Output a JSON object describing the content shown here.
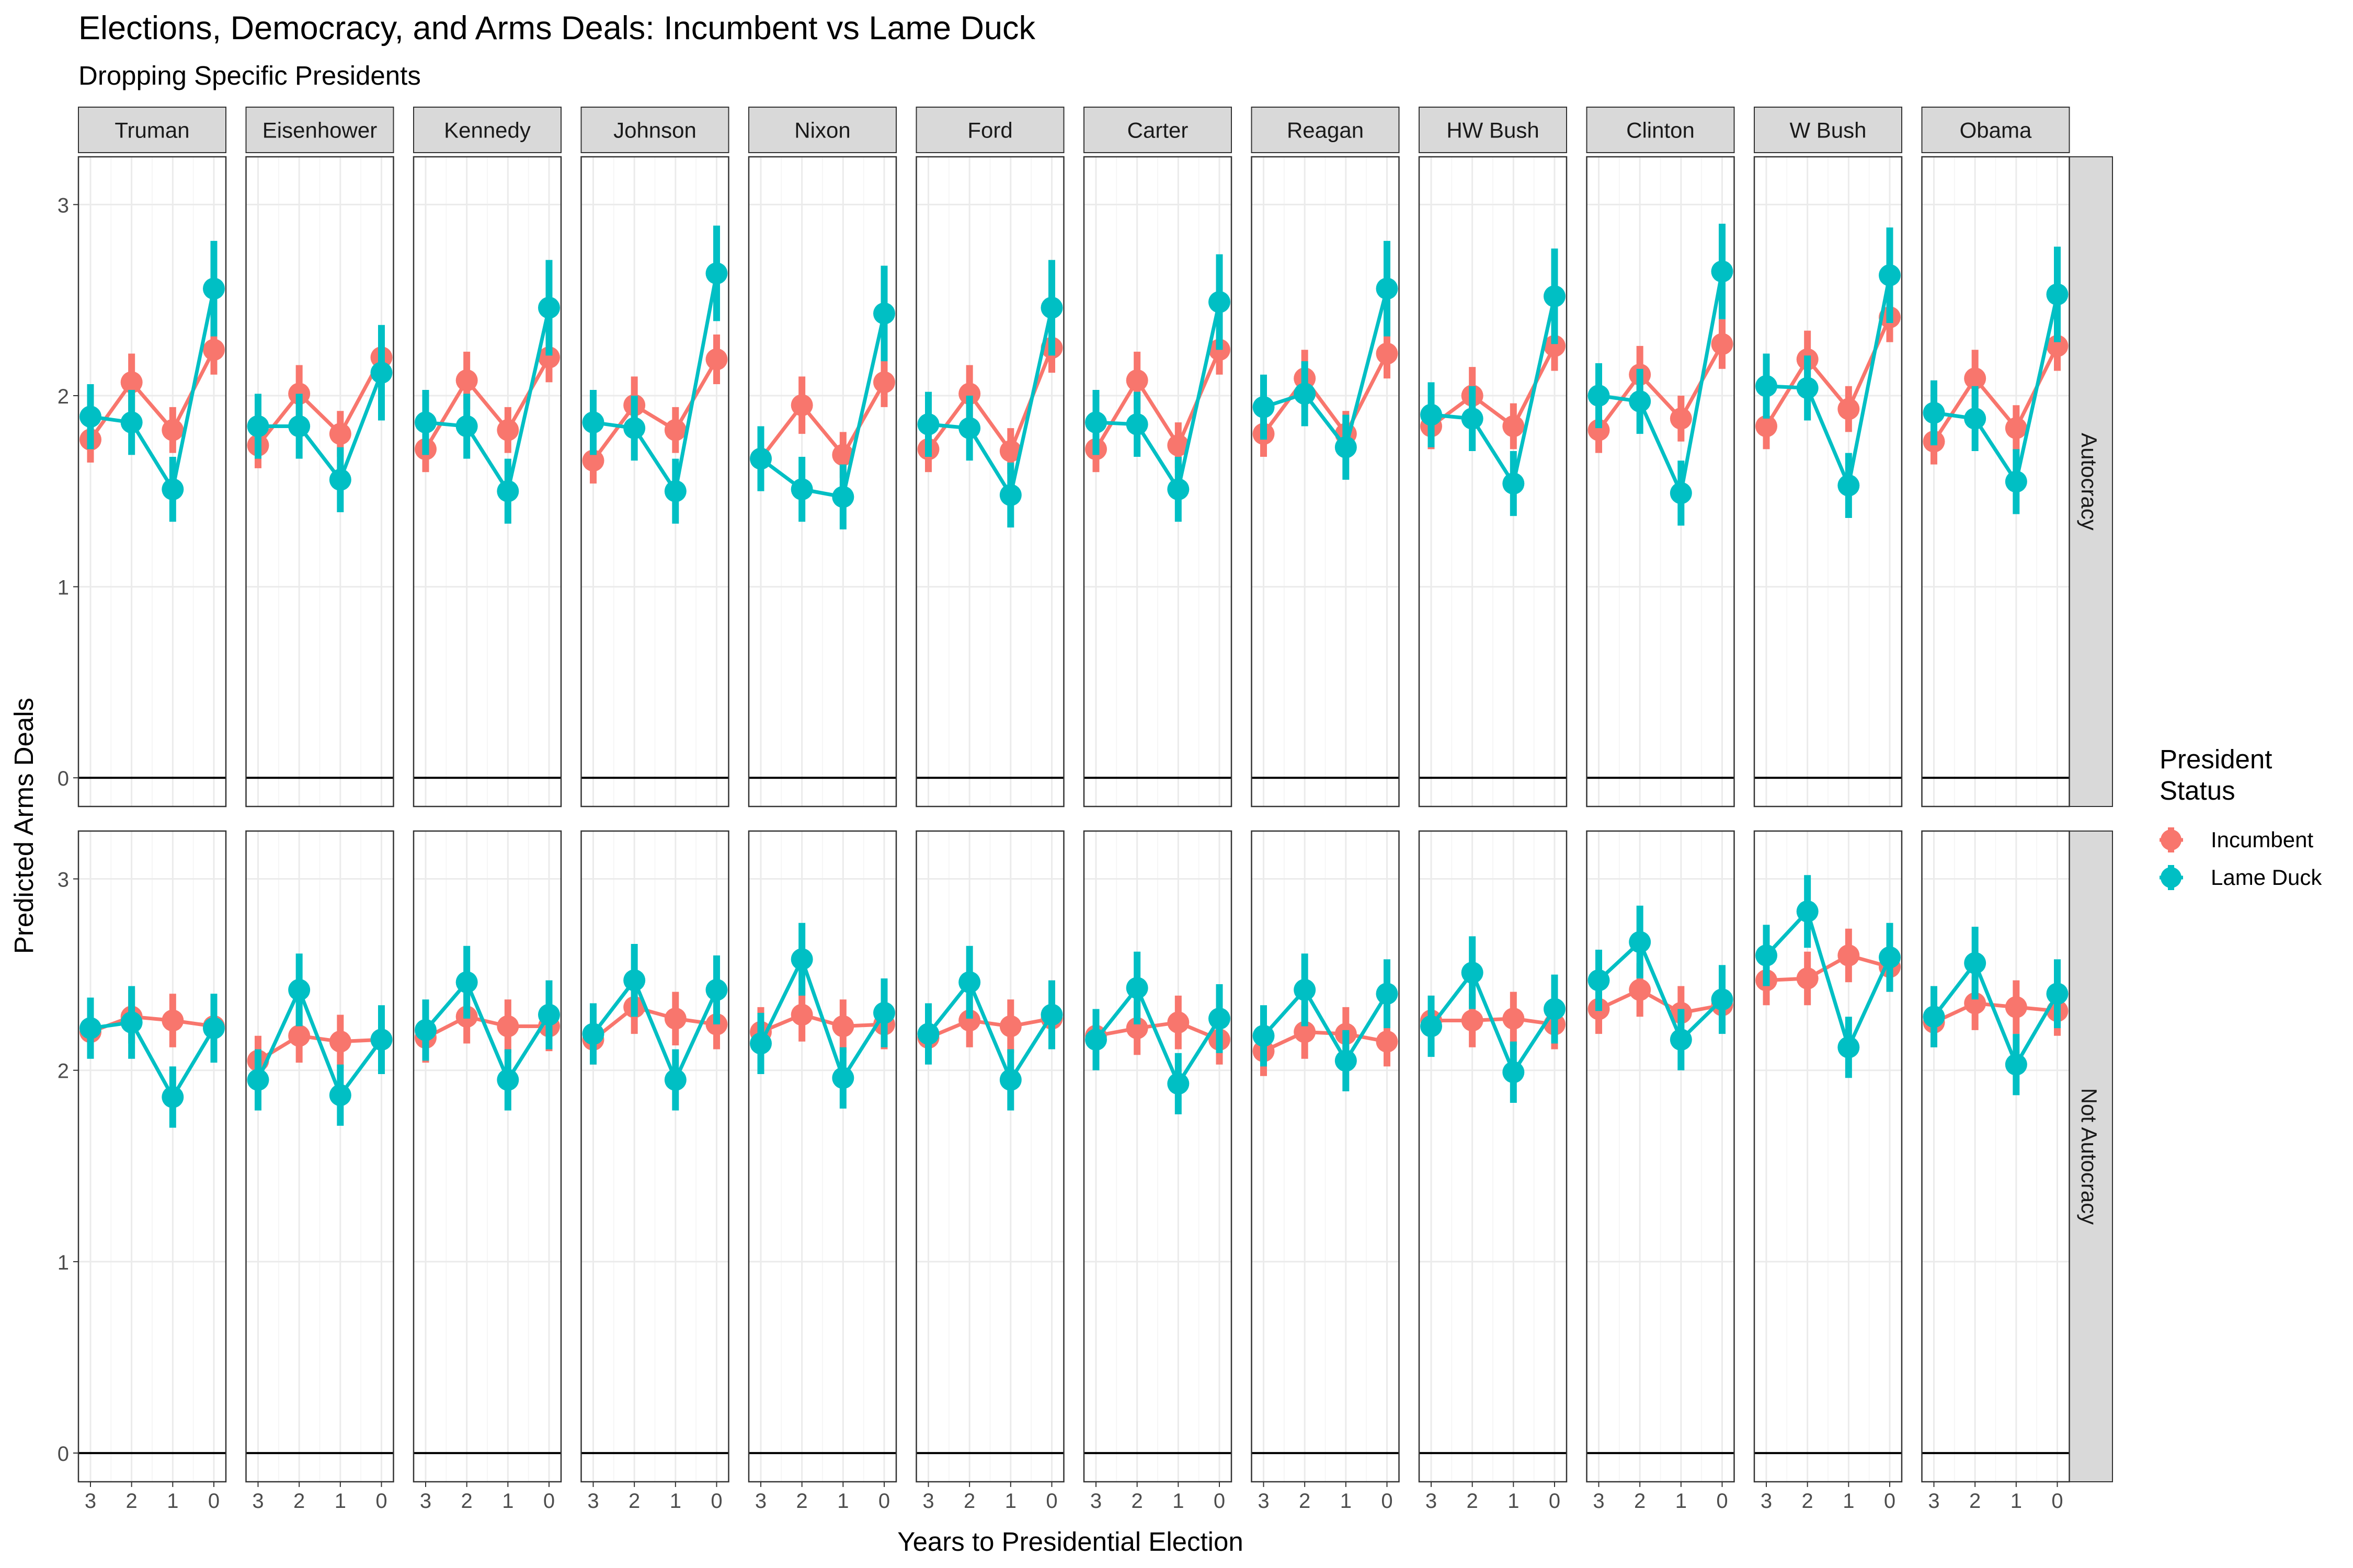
{
  "colors": {
    "incumbent": "#F8766D",
    "lame_duck": "#00BFC4",
    "strip_fill": "#D9D9D9",
    "grid_major": "#EBEBEB",
    "grid_minor": "#F4F4F4"
  },
  "chart_data": {
    "type": "line",
    "title": "Elections, Democracy, and Arms Deals: Incumbent vs Lame Duck",
    "subtitle": "Dropping Specific Presidents",
    "xlabel": "Years to Presidential Election",
    "ylabel": "Predicted Arms Deals",
    "x_categories": [
      "3",
      "2",
      "1",
      "0"
    ],
    "y_ticks": [
      "0",
      "1",
      "2",
      "3"
    ],
    "ylim": [
      -0.15,
      3.25
    ],
    "reference_line_y": 0,
    "grid": true,
    "legend": {
      "title": "President\nStatus",
      "placement": "right",
      "entries": [
        "Incumbent",
        "Lame Duck"
      ]
    },
    "columns": [
      "Truman",
      "Eisenhower",
      "Kennedy",
      "Johnson",
      "Nixon",
      "Ford",
      "Carter",
      "Reagan",
      "HW Bush",
      "Clinton",
      "W Bush",
      "Obama"
    ],
    "rows": [
      "Autocracy",
      "Not Autocracy"
    ],
    "error_half_width": {
      "Autocracy": {
        "Incumbent": [
          0.12,
          0.15,
          0.12,
          0.13
        ],
        "Lame Duck": [
          0.17,
          0.17,
          0.17,
          0.25
        ]
      },
      "Not Autocracy": {
        "Incumbent": [
          0.13,
          0.14,
          0.14,
          0.13
        ],
        "Lame Duck": [
          0.16,
          0.19,
          0.16,
          0.18
        ]
      }
    },
    "panels": {
      "Autocracy": {
        "Incumbent": [
          [
            1.77,
            2.07,
            1.82,
            2.24
          ],
          [
            1.74,
            2.01,
            1.8,
            2.2
          ],
          [
            1.72,
            2.08,
            1.82,
            2.2
          ],
          [
            1.66,
            1.95,
            1.82,
            2.19
          ],
          [
            1.67,
            1.95,
            1.69,
            2.07
          ],
          [
            1.72,
            2.01,
            1.71,
            2.25
          ],
          [
            1.72,
            2.08,
            1.74,
            2.24
          ],
          [
            1.8,
            2.09,
            1.8,
            2.22
          ],
          [
            1.84,
            2.0,
            1.84,
            2.26
          ],
          [
            1.82,
            2.11,
            1.88,
            2.27
          ],
          [
            1.84,
            2.19,
            1.93,
            2.41
          ],
          [
            1.76,
            2.09,
            1.83,
            2.26
          ]
        ],
        "Lame Duck": [
          [
            1.89,
            1.86,
            1.51,
            2.56
          ],
          [
            1.84,
            1.84,
            1.56,
            2.12
          ],
          [
            1.86,
            1.84,
            1.5,
            2.46
          ],
          [
            1.86,
            1.83,
            1.5,
            2.64
          ],
          [
            1.67,
            1.51,
            1.47,
            2.43
          ],
          [
            1.85,
            1.83,
            1.48,
            2.46
          ],
          [
            1.86,
            1.85,
            1.51,
            2.49
          ],
          [
            1.94,
            2.01,
            1.73,
            2.56
          ],
          [
            1.9,
            1.88,
            1.54,
            2.52
          ],
          [
            2.0,
            1.97,
            1.49,
            2.65
          ],
          [
            2.05,
            2.04,
            1.53,
            2.63
          ],
          [
            1.91,
            1.88,
            1.55,
            2.53
          ]
        ]
      },
      "Not Autocracy": {
        "Incumbent": [
          [
            2.2,
            2.28,
            2.26,
            2.23
          ],
          [
            2.05,
            2.18,
            2.15,
            2.16
          ],
          [
            2.17,
            2.28,
            2.23,
            2.23
          ],
          [
            2.16,
            2.33,
            2.27,
            2.24
          ],
          [
            2.2,
            2.29,
            2.23,
            2.24
          ],
          [
            2.17,
            2.26,
            2.23,
            2.27
          ],
          [
            2.18,
            2.22,
            2.25,
            2.16
          ],
          [
            2.1,
            2.2,
            2.19,
            2.15
          ],
          [
            2.26,
            2.26,
            2.27,
            2.24
          ],
          [
            2.32,
            2.42,
            2.3,
            2.34
          ],
          [
            2.47,
            2.48,
            2.6,
            2.54
          ],
          [
            2.25,
            2.35,
            2.33,
            2.31
          ]
        ],
        "Lame Duck": [
          [
            2.22,
            2.25,
            1.86,
            2.22
          ],
          [
            1.95,
            2.42,
            1.87,
            2.16
          ],
          [
            2.21,
            2.46,
            1.95,
            2.29
          ],
          [
            2.19,
            2.47,
            1.95,
            2.42
          ],
          [
            2.14,
            2.58,
            1.96,
            2.3
          ],
          [
            2.19,
            2.46,
            1.95,
            2.29
          ],
          [
            2.16,
            2.43,
            1.93,
            2.27
          ],
          [
            2.18,
            2.42,
            2.05,
            2.4
          ],
          [
            2.23,
            2.51,
            1.99,
            2.32
          ],
          [
            2.47,
            2.67,
            2.16,
            2.37
          ],
          [
            2.6,
            2.83,
            2.12,
            2.59
          ],
          [
            2.28,
            2.56,
            2.03,
            2.4
          ]
        ]
      }
    }
  }
}
